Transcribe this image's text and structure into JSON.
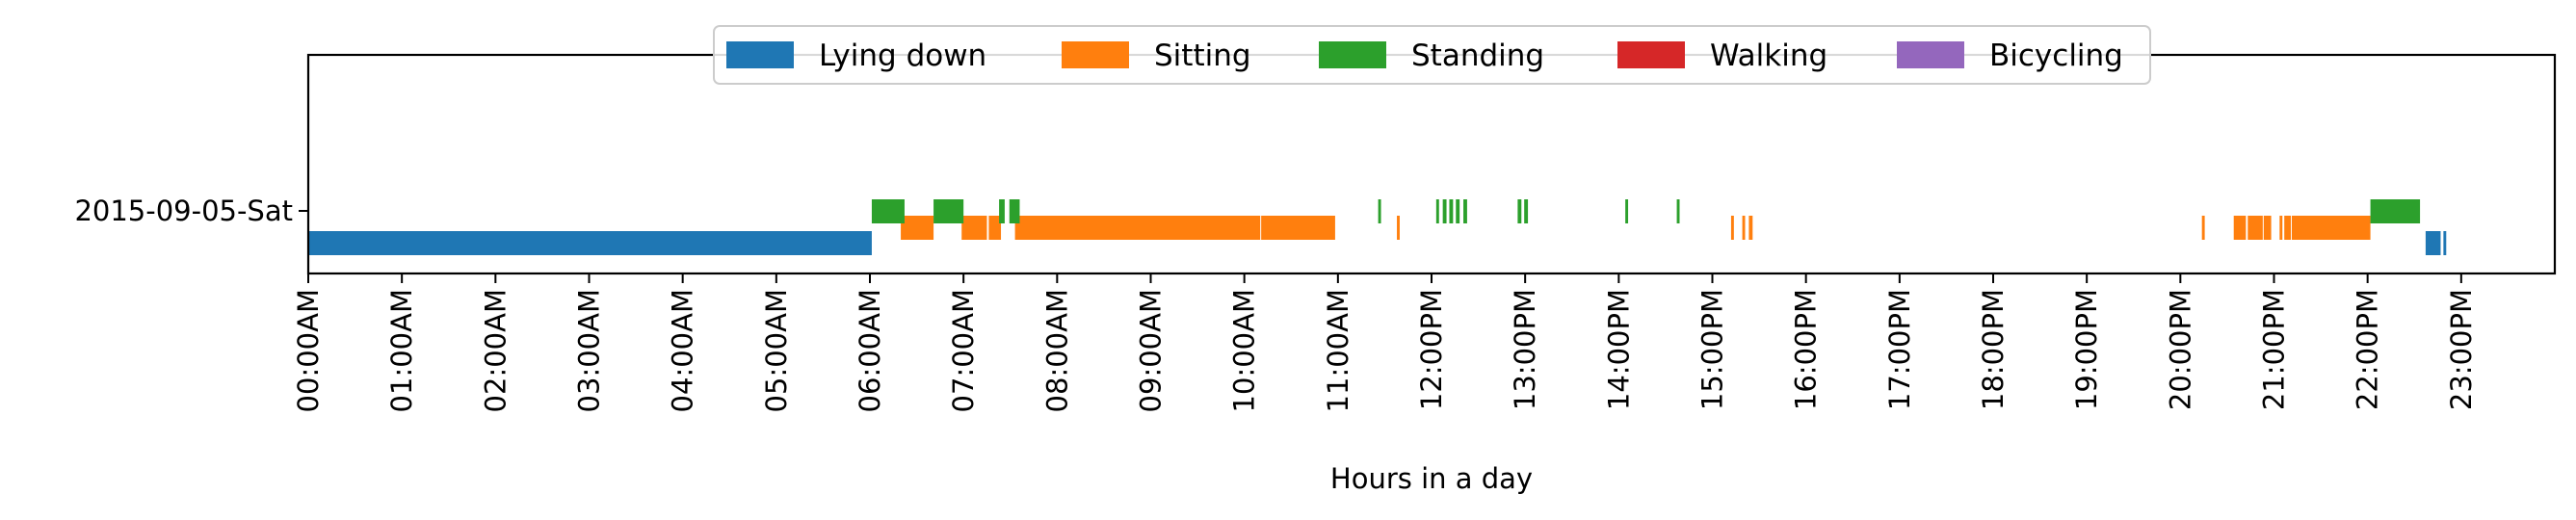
{
  "chart_data": {
    "type": "timeline",
    "title": "",
    "xlabel": "Hours in a day",
    "ylabel": "",
    "xlim": [
      0,
      24
    ],
    "x_ticks": [
      {
        "value": 0,
        "label": "00:00AM"
      },
      {
        "value": 1,
        "label": "01:00AM"
      },
      {
        "value": 2,
        "label": "02:00AM"
      },
      {
        "value": 3,
        "label": "03:00AM"
      },
      {
        "value": 4,
        "label": "04:00AM"
      },
      {
        "value": 5,
        "label": "05:00AM"
      },
      {
        "value": 6,
        "label": "06:00AM"
      },
      {
        "value": 7,
        "label": "07:00AM"
      },
      {
        "value": 8,
        "label": "08:00AM"
      },
      {
        "value": 9,
        "label": "09:00AM"
      },
      {
        "value": 10,
        "label": "10:00AM"
      },
      {
        "value": 11,
        "label": "11:00AM"
      },
      {
        "value": 12,
        "label": "12:00PM"
      },
      {
        "value": 13,
        "label": "13:00PM"
      },
      {
        "value": 14,
        "label": "14:00PM"
      },
      {
        "value": 15,
        "label": "15:00PM"
      },
      {
        "value": 16,
        "label": "16:00PM"
      },
      {
        "value": 17,
        "label": "17:00PM"
      },
      {
        "value": 18,
        "label": "18:00PM"
      },
      {
        "value": 19,
        "label": "19:00PM"
      },
      {
        "value": 20,
        "label": "20:00PM"
      },
      {
        "value": 21,
        "label": "21:00PM"
      },
      {
        "value": 22,
        "label": "22:00PM"
      },
      {
        "value": 23,
        "label": "23:00PM"
      }
    ],
    "y_label_text": "2015-09-05-Sat",
    "legend_position": "top-center",
    "grid": false,
    "series": [
      {
        "name": "Lying down",
        "color": "#1f77b4",
        "lane": 0,
        "intervals": [
          [
            0.0,
            6.02
          ],
          [
            22.62,
            22.78
          ],
          [
            22.81,
            22.84
          ]
        ]
      },
      {
        "name": "Sitting",
        "color": "#ff7f0e",
        "lane": 1,
        "intervals": [
          [
            6.33,
            6.68
          ],
          [
            6.98,
            7.25
          ],
          [
            7.27,
            7.4
          ],
          [
            7.55,
            10.17
          ],
          [
            10.18,
            10.97
          ],
          [
            11.63,
            11.66
          ],
          [
            15.2,
            15.23
          ],
          [
            15.32,
            15.35
          ],
          [
            15.39,
            15.43
          ],
          [
            20.23,
            20.26
          ],
          [
            20.57,
            20.7
          ],
          [
            20.72,
            20.88
          ],
          [
            20.89,
            20.97
          ],
          [
            21.06,
            21.09
          ],
          [
            21.11,
            21.18
          ],
          [
            21.19,
            22.03
          ]
        ]
      },
      {
        "name": "Standing",
        "color": "#2ca02c",
        "lane": 2,
        "intervals": [
          [
            6.02,
            6.37
          ],
          [
            6.68,
            7.0
          ],
          [
            7.38,
            7.44
          ],
          [
            7.49,
            7.6
          ],
          [
            11.43,
            11.46
          ],
          [
            12.05,
            12.08
          ],
          [
            12.12,
            12.16
          ],
          [
            12.19,
            12.23
          ],
          [
            12.26,
            12.3
          ],
          [
            12.34,
            12.38
          ],
          [
            12.92,
            12.96
          ],
          [
            12.99,
            13.03
          ],
          [
            14.07,
            14.1
          ],
          [
            14.62,
            14.65
          ],
          [
            22.03,
            22.56
          ]
        ]
      },
      {
        "name": "Walking",
        "color": "#d62728",
        "lane": 3,
        "intervals": []
      },
      {
        "name": "Bicycling",
        "color": "#9467bd",
        "lane": 4,
        "intervals": []
      }
    ]
  }
}
